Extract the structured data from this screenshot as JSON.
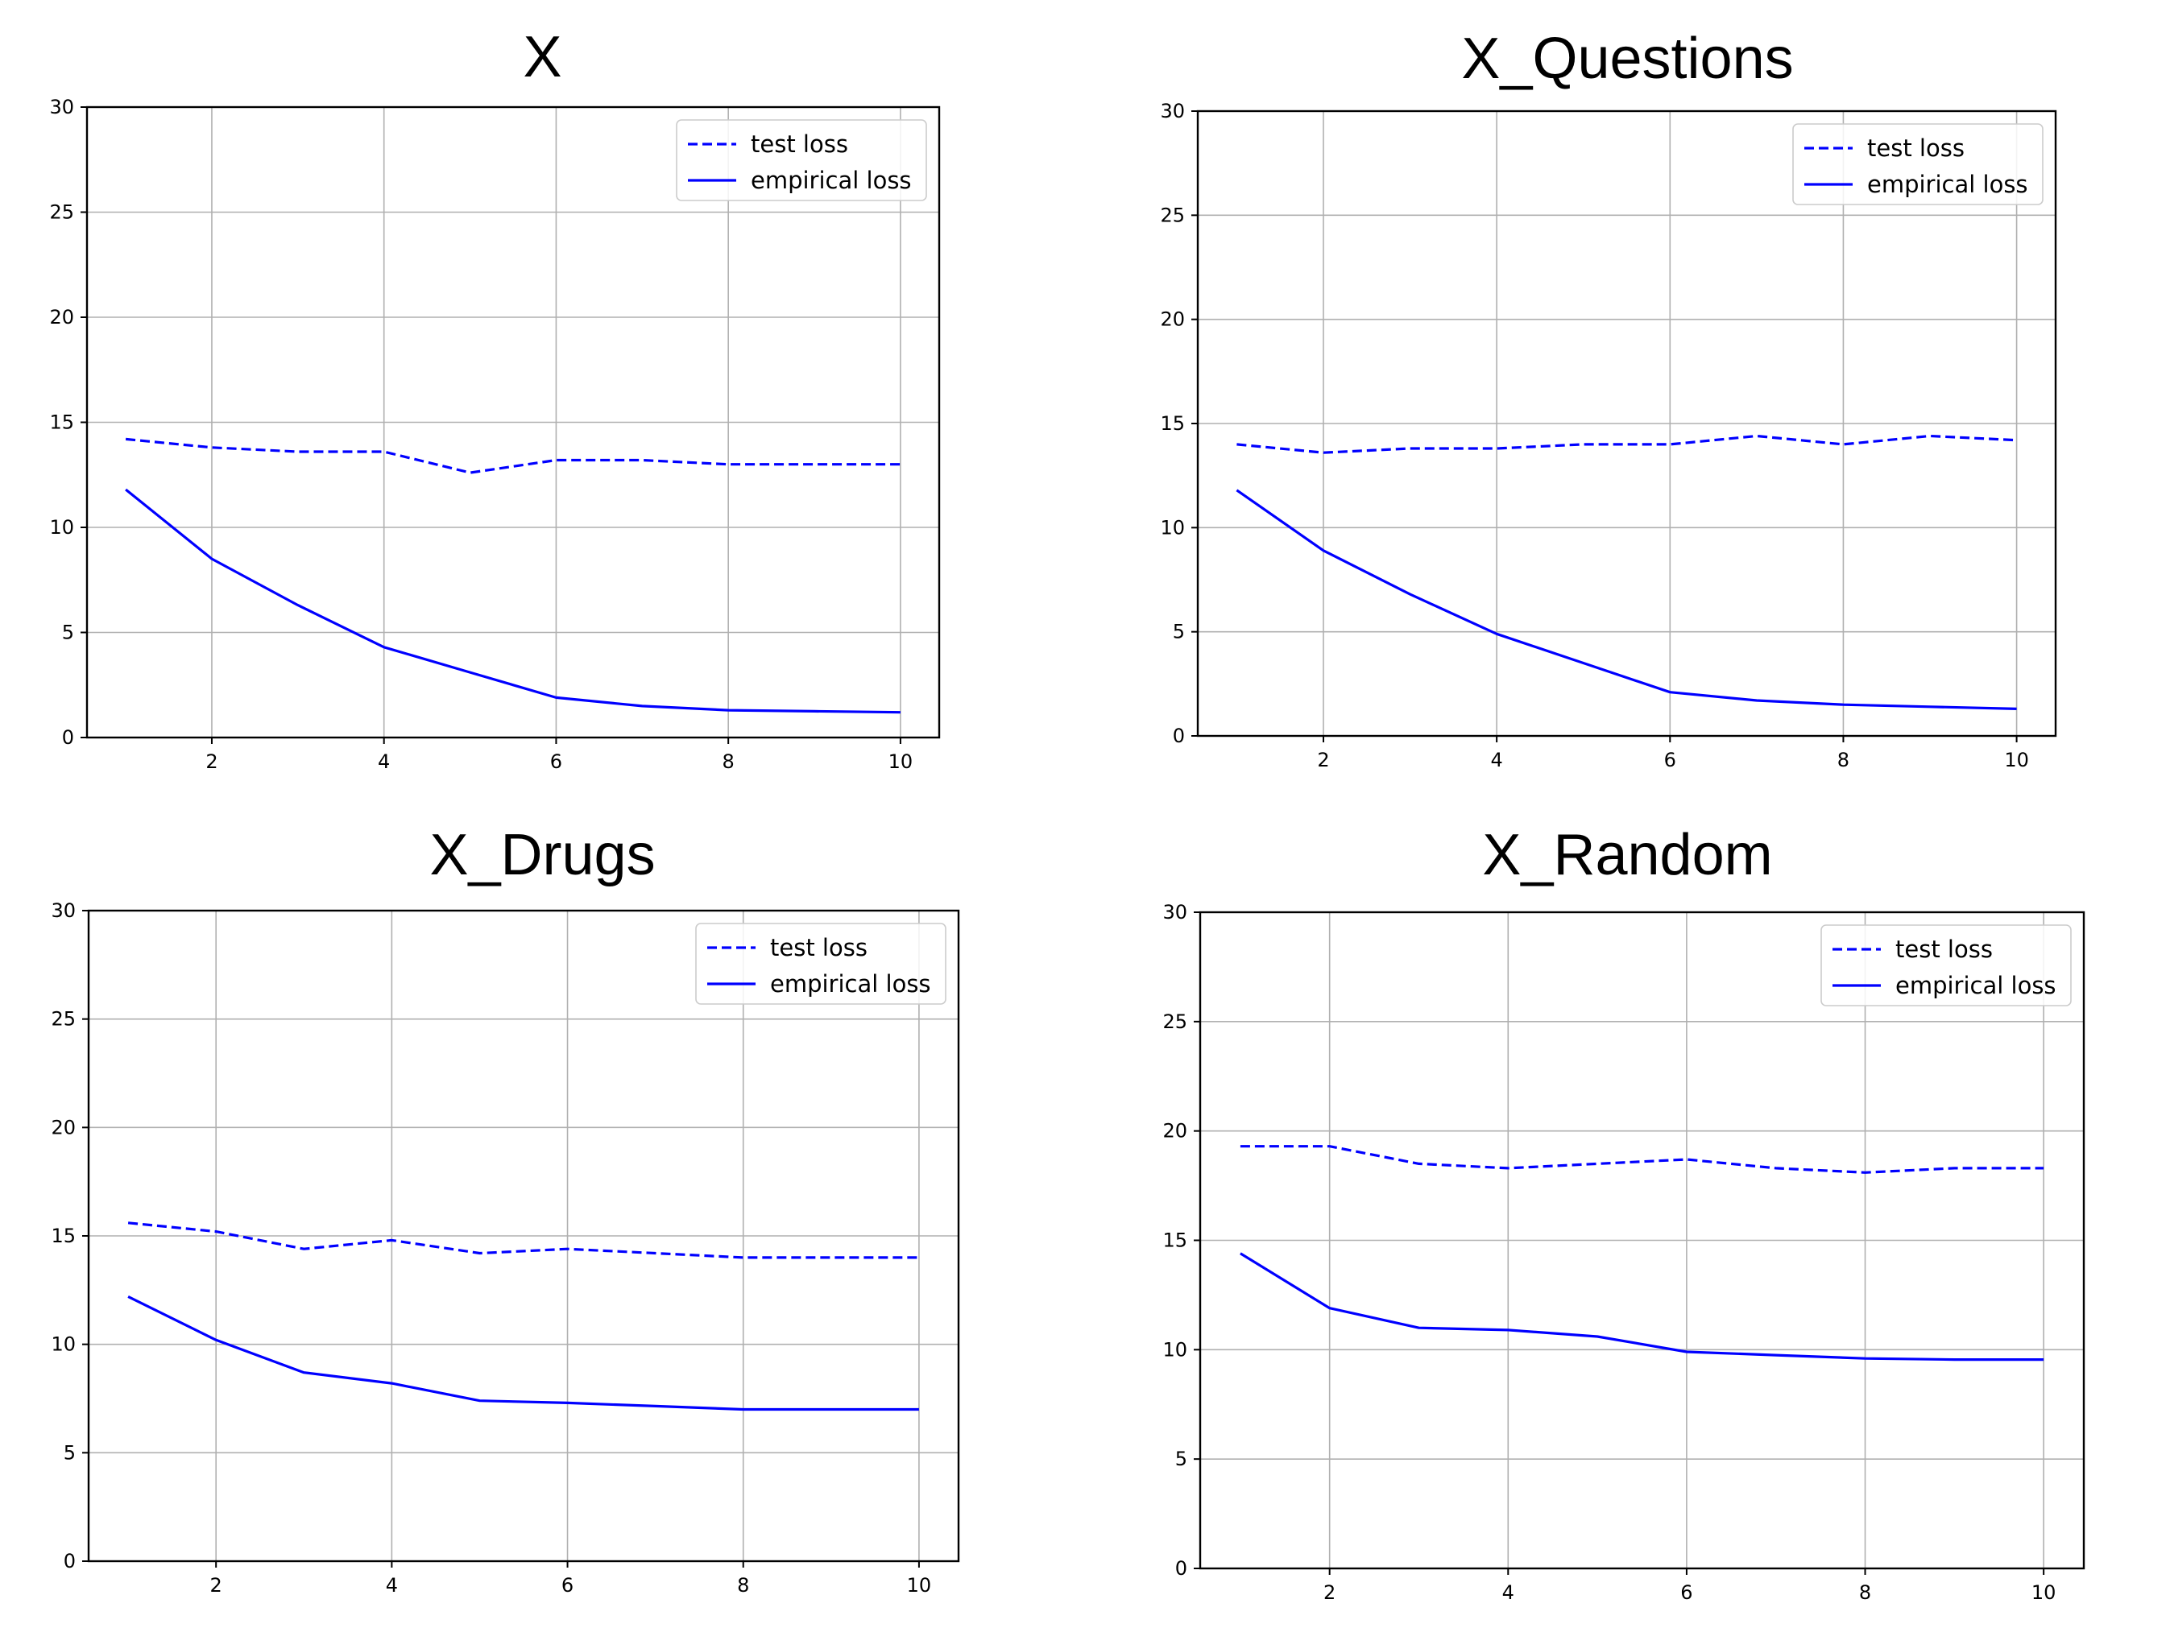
{
  "chart_data": [
    {
      "type": "line",
      "title": "X",
      "xlabel": "",
      "ylabel": "",
      "x": [
        1,
        2,
        3,
        4,
        5,
        6,
        7,
        8,
        9,
        10
      ],
      "xlim": [
        0.55,
        10.45
      ],
      "ylim": [
        0,
        30
      ],
      "xticks": [
        2,
        4,
        6,
        8,
        10
      ],
      "yticks": [
        0,
        5,
        10,
        15,
        20,
        25,
        30
      ],
      "grid": true,
      "legend_position": "top-right",
      "series": [
        {
          "name": "test loss",
          "style": "dashed",
          "color": "#0000ff",
          "values": [
            14.2,
            13.8,
            13.6,
            13.6,
            12.6,
            13.2,
            13.2,
            13.0,
            13.0,
            13.0
          ]
        },
        {
          "name": "empirical loss",
          "style": "solid",
          "color": "#0000ff",
          "values": [
            11.8,
            8.5,
            6.3,
            4.3,
            3.1,
            1.9,
            1.5,
            1.3,
            1.25,
            1.2
          ]
        }
      ]
    },
    {
      "type": "line",
      "title": "X_Questions",
      "xlabel": "",
      "ylabel": "",
      "x": [
        1,
        2,
        3,
        4,
        5,
        6,
        7,
        8,
        9,
        10
      ],
      "xlim": [
        0.55,
        10.45
      ],
      "ylim": [
        0,
        30
      ],
      "xticks": [
        2,
        4,
        6,
        8,
        10
      ],
      "yticks": [
        0,
        5,
        10,
        15,
        20,
        25,
        30
      ],
      "grid": true,
      "legend_position": "top-right",
      "series": [
        {
          "name": "test loss",
          "style": "dashed",
          "color": "#0000ff",
          "values": [
            14.0,
            13.6,
            13.8,
            13.8,
            14.0,
            14.0,
            14.4,
            14.0,
            14.4,
            14.2
          ]
        },
        {
          "name": "empirical loss",
          "style": "solid",
          "color": "#0000ff",
          "values": [
            11.8,
            8.9,
            6.8,
            4.9,
            3.5,
            2.1,
            1.7,
            1.5,
            1.4,
            1.3
          ]
        }
      ]
    },
    {
      "type": "line",
      "title": "X_Drugs",
      "xlabel": "",
      "ylabel": "",
      "x": [
        1,
        2,
        3,
        4,
        5,
        6,
        7,
        8,
        9,
        10
      ],
      "xlim": [
        0.55,
        10.45
      ],
      "ylim": [
        0,
        30
      ],
      "xticks": [
        2,
        4,
        6,
        8,
        10
      ],
      "yticks": [
        0,
        5,
        10,
        15,
        20,
        25,
        30
      ],
      "grid": true,
      "legend_position": "top-right",
      "series": [
        {
          "name": "test loss",
          "style": "dashed",
          "color": "#0000ff",
          "values": [
            15.6,
            15.2,
            14.4,
            14.8,
            14.2,
            14.4,
            14.2,
            14.0,
            14.0,
            14.0
          ]
        },
        {
          "name": "empirical loss",
          "style": "solid",
          "color": "#0000ff",
          "values": [
            12.2,
            10.2,
            8.7,
            8.2,
            7.4,
            7.3,
            7.15,
            7.0,
            7.0,
            7.0
          ]
        }
      ]
    },
    {
      "type": "line",
      "title": "X_Random",
      "xlabel": "",
      "ylabel": "",
      "x": [
        1,
        2,
        3,
        4,
        5,
        6,
        7,
        8,
        9,
        10
      ],
      "xlim": [
        0.55,
        10.45
      ],
      "ylim": [
        0,
        30
      ],
      "xticks": [
        2,
        4,
        6,
        8,
        10
      ],
      "yticks": [
        0,
        5,
        10,
        15,
        20,
        25,
        30
      ],
      "grid": true,
      "legend_position": "top-right",
      "series": [
        {
          "name": "test loss",
          "style": "dashed",
          "color": "#0000ff",
          "values": [
            19.3,
            19.3,
            18.5,
            18.3,
            18.5,
            18.7,
            18.3,
            18.1,
            18.3,
            18.3
          ]
        },
        {
          "name": "empirical loss",
          "style": "solid",
          "color": "#0000ff",
          "values": [
            14.4,
            11.9,
            11.0,
            10.9,
            10.6,
            9.9,
            9.75,
            9.6,
            9.55,
            9.55
          ]
        }
      ]
    }
  ]
}
